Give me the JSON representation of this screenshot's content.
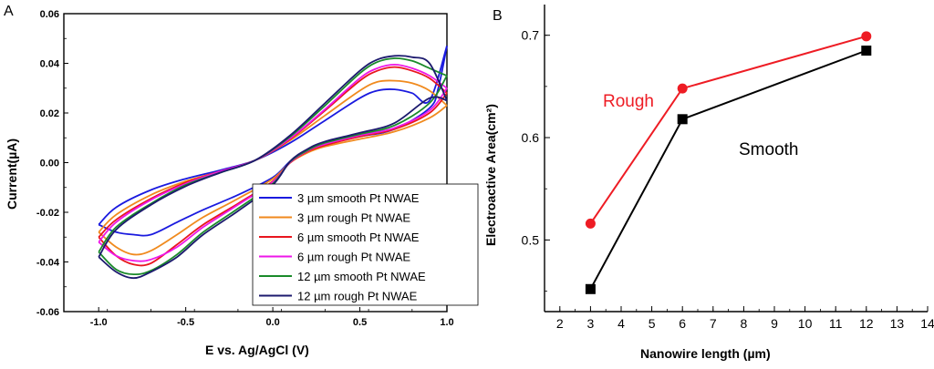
{
  "chart_data": [
    {
      "type": "line",
      "panel": "A",
      "xlabel": "E vs. Ag/AgCl (V)",
      "ylabel": "Current(µA)",
      "xlim": [
        -1.2,
        1.0
      ],
      "ylim": [
        -0.06,
        0.06
      ],
      "xticks": [
        -1.0,
        -0.5,
        0.0,
        0.5,
        1.0
      ],
      "xtick_labels": [
        "-1.0",
        "-0.5",
        "0.0",
        "0.5",
        "1.0"
      ],
      "yticks": [
        -0.06,
        -0.04,
        -0.02,
        0.0,
        0.02,
        0.04,
        0.06
      ],
      "ytick_labels": [
        "-0.06",
        "-0.04",
        "-0.02",
        "0.00",
        "0.02",
        "0.04",
        "0.06"
      ],
      "legend_position": "bottom-right",
      "series": [
        {
          "name": "3 µm smooth Pt NWAE",
          "color": "#1a1adf",
          "upper": [
            [
              -1.0,
              -0.025
            ],
            [
              -0.9,
              -0.018
            ],
            [
              -0.7,
              -0.011
            ],
            [
              -0.5,
              -0.0065
            ],
            [
              -0.3,
              -0.003
            ],
            [
              -0.1,
              0.001
            ],
            [
              0.1,
              0.008
            ],
            [
              0.3,
              0.017
            ],
            [
              0.5,
              0.026
            ],
            [
              0.6,
              0.029
            ],
            [
              0.7,
              0.0295
            ],
            [
              0.8,
              0.028
            ],
            [
              0.9,
              0.025
            ],
            [
              1.0,
              0.047
            ]
          ],
          "lower": [
            [
              1.0,
              0.047
            ],
            [
              0.95,
              0.03
            ],
            [
              0.9,
              0.022
            ],
            [
              0.7,
              0.0135
            ],
            [
              0.5,
              0.0105
            ],
            [
              0.3,
              0.0075
            ],
            [
              0.2,
              0.005
            ],
            [
              0.1,
              0.0005
            ],
            [
              0.0,
              -0.006
            ],
            [
              -0.2,
              -0.013
            ],
            [
              -0.4,
              -0.019
            ],
            [
              -0.55,
              -0.024
            ],
            [
              -0.7,
              -0.029
            ],
            [
              -0.8,
              -0.029
            ],
            [
              -0.9,
              -0.028
            ],
            [
              -1.0,
              -0.025
            ]
          ]
        },
        {
          "name": "3 µm rough Pt NWAE",
          "color": "#f08a1e",
          "upper": [
            [
              -1.0,
              -0.028
            ],
            [
              -0.9,
              -0.021
            ],
            [
              -0.7,
              -0.013
            ],
            [
              -0.5,
              -0.0075
            ],
            [
              -0.3,
              -0.0035
            ],
            [
              -0.1,
              0.001
            ],
            [
              0.1,
              0.009
            ],
            [
              0.3,
              0.019
            ],
            [
              0.5,
              0.029
            ],
            [
              0.6,
              0.0325
            ],
            [
              0.7,
              0.033
            ],
            [
              0.8,
              0.032
            ],
            [
              0.9,
              0.029
            ],
            [
              1.0,
              0.023
            ]
          ],
          "lower": [
            [
              1.0,
              0.023
            ],
            [
              0.9,
              0.018
            ],
            [
              0.7,
              0.0125
            ],
            [
              0.5,
              0.0095
            ],
            [
              0.3,
              0.0065
            ],
            [
              0.2,
              0.004
            ],
            [
              0.1,
              0.0
            ],
            [
              0.0,
              -0.0065
            ],
            [
              -0.2,
              -0.0145
            ],
            [
              -0.4,
              -0.022
            ],
            [
              -0.55,
              -0.029
            ],
            [
              -0.7,
              -0.0355
            ],
            [
              -0.8,
              -0.037
            ],
            [
              -0.9,
              -0.034
            ],
            [
              -1.0,
              -0.028
            ]
          ]
        },
        {
          "name": "6 µm smooth Pt NWAE",
          "color": "#e8151e",
          "upper": [
            [
              -1.0,
              -0.03
            ],
            [
              -0.9,
              -0.023
            ],
            [
              -0.7,
              -0.0145
            ],
            [
              -0.5,
              -0.008
            ],
            [
              -0.3,
              -0.0035
            ],
            [
              -0.1,
              0.001
            ],
            [
              0.1,
              0.0095
            ],
            [
              0.3,
              0.021
            ],
            [
              0.5,
              0.033
            ],
            [
              0.6,
              0.037
            ],
            [
              0.7,
              0.0385
            ],
            [
              0.8,
              0.037
            ],
            [
              0.9,
              0.034
            ],
            [
              1.0,
              0.028
            ]
          ],
          "lower": [
            [
              1.0,
              0.028
            ],
            [
              0.9,
              0.02
            ],
            [
              0.7,
              0.0135
            ],
            [
              0.5,
              0.0105
            ],
            [
              0.3,
              0.007
            ],
            [
              0.2,
              0.0045
            ],
            [
              0.1,
              0.0
            ],
            [
              0.0,
              -0.0075
            ],
            [
              -0.2,
              -0.0165
            ],
            [
              -0.4,
              -0.025
            ],
            [
              -0.55,
              -0.033
            ],
            [
              -0.7,
              -0.0405
            ],
            [
              -0.8,
              -0.041
            ],
            [
              -0.9,
              -0.0375
            ],
            [
              -1.0,
              -0.03
            ]
          ]
        },
        {
          "name": "6 µm rough Pt NWAE",
          "color": "#ee16e8",
          "upper": [
            [
              -1.0,
              -0.032
            ],
            [
              -0.9,
              -0.024
            ],
            [
              -0.7,
              -0.015
            ],
            [
              -0.5,
              -0.0085
            ],
            [
              -0.3,
              -0.0035
            ],
            [
              -0.1,
              0.001
            ],
            [
              0.1,
              0.0098
            ],
            [
              0.3,
              0.0215
            ],
            [
              0.5,
              0.034
            ],
            [
              0.6,
              0.038
            ],
            [
              0.7,
              0.0395
            ],
            [
              0.8,
              0.038
            ],
            [
              0.9,
              0.035
            ],
            [
              1.0,
              0.03
            ]
          ],
          "lower": [
            [
              1.0,
              0.03
            ],
            [
              0.9,
              0.021
            ],
            [
              0.7,
              0.014
            ],
            [
              0.5,
              0.011
            ],
            [
              0.3,
              0.0075
            ],
            [
              0.2,
              0.0048
            ],
            [
              0.1,
              0.0002
            ],
            [
              0.0,
              -0.0078
            ],
            [
              -0.2,
              -0.017
            ],
            [
              -0.4,
              -0.026
            ],
            [
              -0.55,
              -0.034
            ],
            [
              -0.7,
              -0.039
            ],
            [
              -0.8,
              -0.0395
            ],
            [
              -0.9,
              -0.0375
            ],
            [
              -1.0,
              -0.032
            ]
          ]
        },
        {
          "name": "12 µm smooth Pt NWAE",
          "color": "#1a8a2a",
          "upper": [
            [
              -1.0,
              -0.036
            ],
            [
              -0.9,
              -0.026
            ],
            [
              -0.7,
              -0.0165
            ],
            [
              -0.5,
              -0.009
            ],
            [
              -0.3,
              -0.004
            ],
            [
              -0.1,
              0.001
            ],
            [
              0.1,
              0.0105
            ],
            [
              0.3,
              0.023
            ],
            [
              0.5,
              0.036
            ],
            [
              0.6,
              0.0405
            ],
            [
              0.7,
              0.042
            ],
            [
              0.8,
              0.041
            ],
            [
              0.9,
              0.038
            ],
            [
              1.0,
              0.035
            ]
          ],
          "lower": [
            [
              1.0,
              0.035
            ],
            [
              0.9,
              0.024
            ],
            [
              0.7,
              0.015
            ],
            [
              0.5,
              0.0115
            ],
            [
              0.3,
              0.008
            ],
            [
              0.2,
              0.005
            ],
            [
              0.1,
              0.0004
            ],
            [
              0.0,
              -0.0085
            ],
            [
              -0.2,
              -0.0185
            ],
            [
              -0.4,
              -0.028
            ],
            [
              -0.55,
              -0.037
            ],
            [
              -0.7,
              -0.0435
            ],
            [
              -0.8,
              -0.045
            ],
            [
              -0.9,
              -0.043
            ],
            [
              -1.0,
              -0.036
            ]
          ]
        },
        {
          "name": "12 µm rough Pt NWAE",
          "color": "#1c1a6e",
          "upper": [
            [
              -1.0,
              -0.038
            ],
            [
              -0.9,
              -0.027
            ],
            [
              -0.7,
              -0.017
            ],
            [
              -0.5,
              -0.0095
            ],
            [
              -0.3,
              -0.004
            ],
            [
              -0.1,
              0.001
            ],
            [
              0.1,
              0.011
            ],
            [
              0.3,
              0.024
            ],
            [
              0.5,
              0.037
            ],
            [
              0.6,
              0.0415
            ],
            [
              0.7,
              0.043
            ],
            [
              0.8,
              0.0425
            ],
            [
              0.9,
              0.04
            ],
            [
              1.0,
              0.025
            ]
          ],
          "lower": [
            [
              1.0,
              0.025
            ],
            [
              0.9,
              0.026
            ],
            [
              0.7,
              0.016
            ],
            [
              0.5,
              0.012
            ],
            [
              0.3,
              0.0085
            ],
            [
              0.2,
              0.0055
            ],
            [
              0.1,
              0.0006
            ],
            [
              0.0,
              -0.009
            ],
            [
              -0.2,
              -0.0195
            ],
            [
              -0.4,
              -0.029
            ],
            [
              -0.55,
              -0.038
            ],
            [
              -0.7,
              -0.044
            ],
            [
              -0.8,
              -0.0465
            ],
            [
              -0.9,
              -0.044
            ],
            [
              -1.0,
              -0.038
            ]
          ]
        }
      ]
    },
    {
      "type": "line",
      "panel": "B",
      "xlabel": "Nanowire length (µm)",
      "ylabel": "Electroactive Area(cm²)",
      "xlim": [
        1.5,
        14
      ],
      "ylim": [
        0.43,
        0.73
      ],
      "xticks": [
        2,
        3,
        4,
        5,
        6,
        7,
        8,
        9,
        10,
        11,
        12,
        13,
        14
      ],
      "xtick_labels": [
        "2",
        "3",
        "4",
        "5",
        "6",
        "7",
        "8",
        "9",
        "10",
        "11",
        "12",
        "13",
        "14"
      ],
      "yticks": [
        0.5,
        0.6,
        0.7
      ],
      "ytick_labels": [
        "0.5",
        "0.6",
        "0.7"
      ],
      "series": [
        {
          "name": "Rough",
          "color": "#ee1c24",
          "marker": "circle",
          "x": [
            3,
            6,
            12
          ],
          "y": [
            0.516,
            0.648,
            0.699
          ]
        },
        {
          "name": "Smooth",
          "color": "#000000",
          "marker": "square",
          "x": [
            3,
            6,
            12
          ],
          "y": [
            0.452,
            0.618,
            0.685
          ]
        }
      ],
      "annotations": [
        {
          "text": "Rough",
          "color": "#ee1c24"
        },
        {
          "text": "Smooth",
          "color": "#000000"
        }
      ]
    }
  ]
}
